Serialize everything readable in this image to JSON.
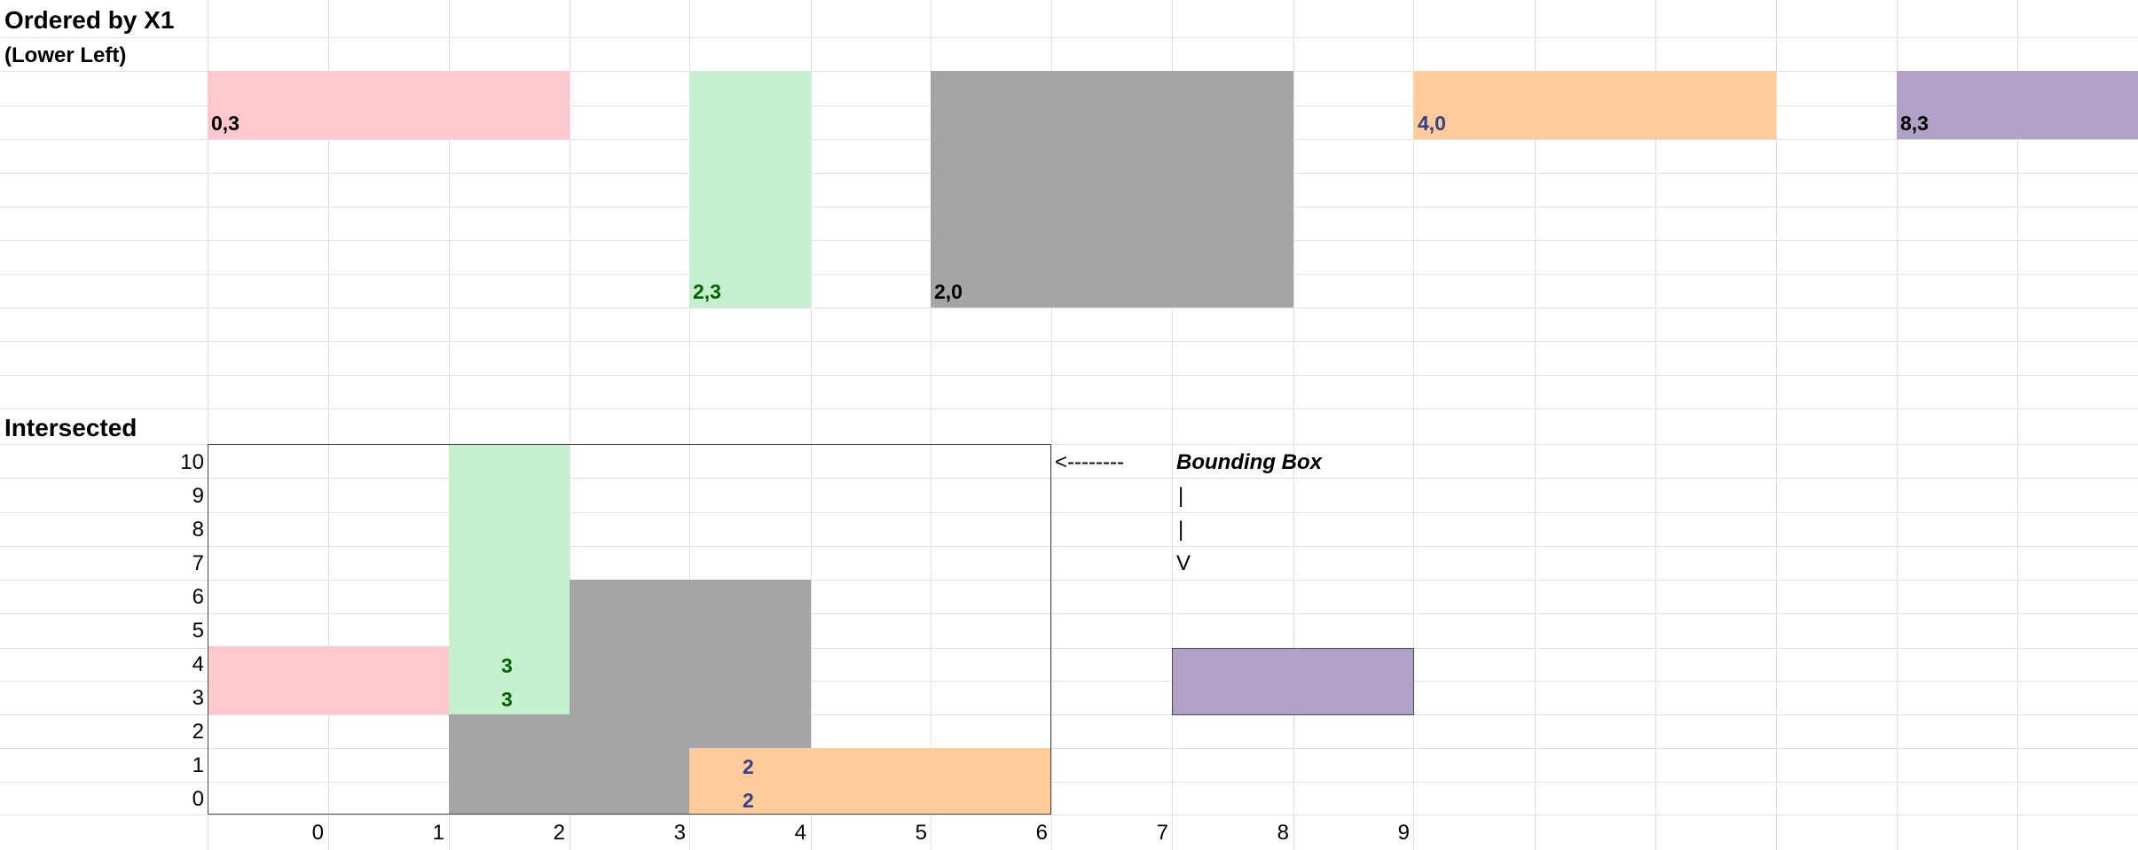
{
  "colors": {
    "pink": "#ffc7ce",
    "green": "#c6efce",
    "gray": "#a5a5a5",
    "orange": "#ffcc99",
    "purple": "#b1a0c7",
    "green_text": "#006100",
    "blue_text": "#333f8c",
    "gridline": "#e1e1e1"
  },
  "section_top": {
    "title": "Ordered by X1",
    "subtitle": "(Lower Left)",
    "labels": [
      "0,3",
      "2,3",
      "2,0",
      "4,0",
      "8,3"
    ]
  },
  "section_bottom": {
    "title": "Intersected",
    "y_axis": [
      "10",
      "9",
      "8",
      "7",
      "6",
      "5",
      "4",
      "3",
      "2",
      "1",
      "0"
    ],
    "x_axis": [
      "0",
      "1",
      "2",
      "3",
      "4",
      "5",
      "6",
      "7",
      "8",
      "9"
    ],
    "cell_values": [
      "3",
      "3",
      "2",
      "2"
    ],
    "arrow": "<--------",
    "bounding_box_label": "Bounding Box",
    "pipe_1": "|",
    "pipe_2": "|",
    "arrow_down": "V"
  }
}
